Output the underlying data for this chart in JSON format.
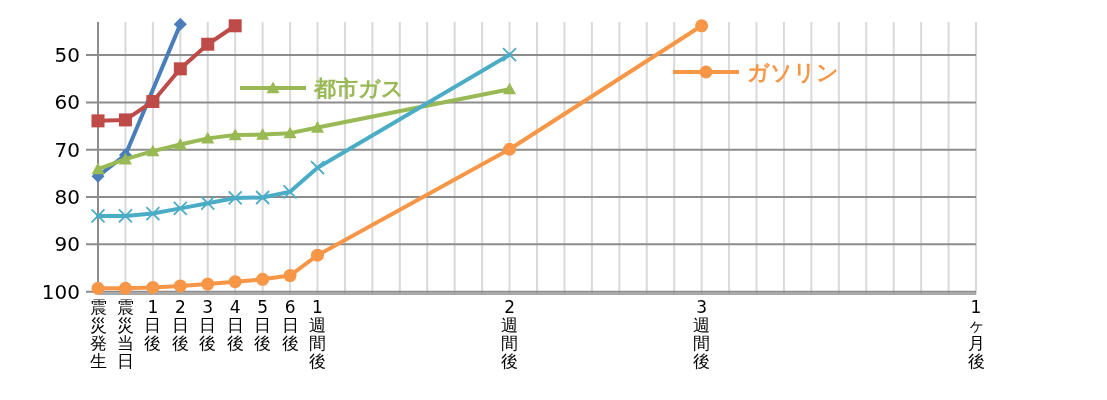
{
  "chart_data": {
    "type": "line",
    "categories": [
      "震災発生",
      "震災当日",
      "1日後",
      "2日後",
      "3日後",
      "4日後",
      "5日後",
      "6日後",
      "1週間後",
      null,
      null,
      null,
      null,
      null,
      null,
      "2週間後",
      null,
      null,
      null,
      null,
      null,
      null,
      "3週間後",
      null,
      null,
      null,
      null,
      null,
      null,
      null,
      null,
      null,
      "1ヶ月後"
    ],
    "series": [
      {
        "color": "#4a7ebb",
        "marker": "diamond",
        "values": [
          75.6,
          71.1,
          null,
          43.5,
          null,
          null,
          null,
          null,
          null,
          null,
          null,
          null,
          null,
          null,
          null,
          null,
          null,
          null,
          null,
          null,
          null,
          null,
          null,
          null,
          null,
          null,
          null,
          null,
          null,
          null,
          null,
          null,
          null
        ]
      },
      {
        "color": "#be4b48",
        "marker": "square",
        "values": [
          63.9,
          63.7,
          59.8,
          52.9,
          47.7,
          43.8,
          null,
          null,
          null,
          null,
          null,
          null,
          null,
          null,
          null,
          null,
          null,
          null,
          null,
          null,
          null,
          null,
          null,
          null,
          null,
          null,
          null,
          null,
          null,
          null,
          null,
          null,
          null
        ]
      },
      {
        "name": "都市ガス",
        "color": "#98b954",
        "marker": "triangle",
        "values": [
          74.1,
          72.0,
          70.3,
          68.9,
          67.6,
          66.9,
          66.8,
          66.5,
          65.3,
          null,
          null,
          null,
          null,
          null,
          null,
          57.2,
          null,
          null,
          null,
          null,
          null,
          null,
          null,
          null,
          null,
          null,
          null,
          null,
          null,
          null,
          null,
          null,
          null
        ]
      },
      {
        "color": "#4bacc6",
        "marker": "cross",
        "values": [
          84.0,
          84.0,
          83.5,
          82.4,
          81.3,
          80.2,
          80.1,
          78.9,
          73.8,
          null,
          null,
          null,
          null,
          null,
          null,
          49.9,
          null,
          null,
          null,
          null,
          null,
          null,
          null,
          null,
          null,
          null,
          null,
          null,
          null,
          null,
          null,
          null,
          null
        ]
      },
      {
        "name": "ガソリン",
        "color": "#f79646",
        "marker": "circle",
        "values": [
          99.3,
          99.3,
          99.1,
          98.8,
          98.4,
          97.9,
          97.4,
          96.6,
          92.3,
          null,
          null,
          null,
          null,
          null,
          null,
          69.9,
          null,
          null,
          null,
          null,
          null,
          null,
          43.8,
          null,
          null,
          null,
          null,
          null,
          null,
          null,
          null,
          null,
          null
        ]
      }
    ],
    "ylim": [
      100.5,
      43
    ],
    "yticks": [
      50,
      60,
      70,
      80,
      90,
      100
    ],
    "grid": true,
    "legend": "top"
  }
}
